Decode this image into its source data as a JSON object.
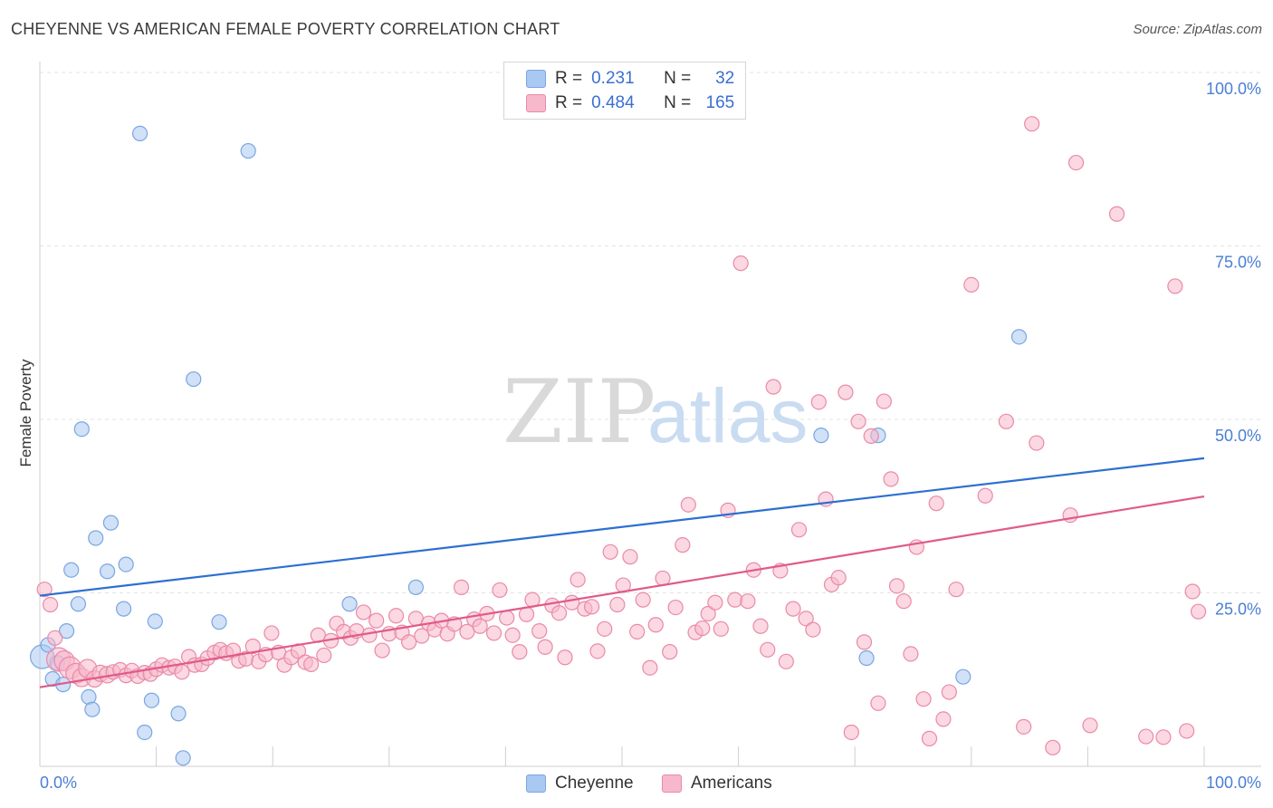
{
  "title": "CHEYENNE VS AMERICAN FEMALE POVERTY CORRELATION CHART",
  "source": "Source: ZipAtlas.com",
  "watermark": {
    "zip": "ZIP",
    "atlas": "atlas"
  },
  "legend": {
    "rows": [
      {
        "r_label": "R =",
        "r_value": "0.231",
        "n_label": "N =",
        "n_value": "32",
        "color": "#a9c8f2",
        "border": "#7aa6e0"
      },
      {
        "r_label": "R =",
        "r_value": "0.484",
        "n_label": "N =",
        "n_value": "165",
        "color": "#f7b8cb",
        "border": "#e98aa8"
      }
    ]
  },
  "bottom_legend": [
    {
      "label": "Cheyenne",
      "color": "#a9c8f2",
      "border": "#7aa6e0"
    },
    {
      "label": "Americans",
      "color": "#f7b8cb",
      "border": "#e98aa8"
    }
  ],
  "chart_data": {
    "type": "scatter",
    "title": "CHEYENNE VS AMERICAN FEMALE POVERTY CORRELATION CHART",
    "xlabel": "",
    "ylabel": "Female Poverty",
    "xlim": [
      0,
      100
    ],
    "ylim": [
      0,
      100
    ],
    "x_tick_labels": [
      "0.0%",
      "100.0%"
    ],
    "y_tick_labels": [
      {
        "value": 25,
        "label": "25.0%"
      },
      {
        "value": 50,
        "label": "50.0%"
      },
      {
        "value": 75,
        "label": "75.0%"
      },
      {
        "value": 100,
        "label": "100.0%"
      }
    ],
    "grid": true,
    "legend_position": "top-center",
    "series": [
      {
        "name": "Cheyenne",
        "color": "#a9c8f2",
        "stroke": "#7aa6e0",
        "trend": {
          "color": "#2d6fd0",
          "x": [
            0,
            100
          ],
          "y": [
            24.6,
            44.4
          ]
        },
        "points": [
          [
            0.2,
            15.8,
            26
          ],
          [
            0.7,
            17.5,
            16
          ],
          [
            1.1,
            12.6,
            16
          ],
          [
            1.5,
            14.9,
            16
          ],
          [
            2.0,
            11.8,
            16
          ],
          [
            2.3,
            19.5,
            16
          ],
          [
            2.7,
            28.3,
            16
          ],
          [
            3.3,
            23.4,
            16
          ],
          [
            3.6,
            48.6,
            16
          ],
          [
            4.2,
            10.0,
            16
          ],
          [
            4.5,
            8.2,
            16
          ],
          [
            4.8,
            32.9,
            16
          ],
          [
            5.8,
            28.1,
            16
          ],
          [
            6.1,
            35.1,
            16
          ],
          [
            7.2,
            22.7,
            16
          ],
          [
            7.4,
            29.1,
            16
          ],
          [
            8.6,
            91.2,
            16
          ],
          [
            9.0,
            4.9,
            16
          ],
          [
            9.6,
            9.5,
            16
          ],
          [
            9.9,
            20.9,
            16
          ],
          [
            11.9,
            7.6,
            16
          ],
          [
            12.3,
            1.2,
            16
          ],
          [
            13.2,
            55.8,
            16
          ],
          [
            15.4,
            20.8,
            16
          ],
          [
            17.9,
            88.7,
            16
          ],
          [
            26.6,
            23.4,
            16
          ],
          [
            32.3,
            25.8,
            16
          ],
          [
            67.1,
            47.7,
            16
          ],
          [
            71.0,
            15.6,
            16
          ],
          [
            72.0,
            47.7,
            16
          ],
          [
            79.3,
            12.9,
            16
          ],
          [
            84.1,
            61.9,
            16
          ]
        ]
      },
      {
        "name": "Americans",
        "color": "#f7b8cb",
        "stroke": "#e98aa8",
        "trend": {
          "color": "#e05a8a",
          "x": [
            0,
            100
          ],
          "y": [
            11.4,
            38.9
          ]
        },
        "points": [
          [
            0.4,
            25.5,
            16
          ],
          [
            0.9,
            23.3,
            16
          ],
          [
            1.3,
            18.5,
            16
          ],
          [
            1.6,
            15.4,
            26
          ],
          [
            2.1,
            15.2,
            22
          ],
          [
            2.6,
            14.2,
            24
          ],
          [
            3.1,
            13.4,
            22
          ],
          [
            3.6,
            12.8,
            20
          ],
          [
            4.1,
            14.1,
            20
          ],
          [
            4.7,
            12.6,
            18
          ],
          [
            5.2,
            13.4,
            18
          ],
          [
            5.8,
            13.2,
            18
          ],
          [
            6.3,
            13.6,
            16
          ],
          [
            6.9,
            13.9,
            16
          ],
          [
            7.4,
            13.1,
            16
          ],
          [
            7.9,
            13.8,
            16
          ],
          [
            8.4,
            13.0,
            16
          ],
          [
            9.0,
            13.5,
            16
          ],
          [
            9.5,
            13.3,
            16
          ],
          [
            10.0,
            14.0,
            16
          ],
          [
            10.5,
            14.6,
            16
          ],
          [
            11.1,
            14.2,
            16
          ],
          [
            11.6,
            14.4,
            16
          ],
          [
            12.2,
            13.6,
            16
          ],
          [
            12.8,
            15.8,
            16
          ],
          [
            13.3,
            14.6,
            16
          ],
          [
            13.9,
            14.7,
            16
          ],
          [
            14.4,
            15.6,
            16
          ],
          [
            15.0,
            16.4,
            16
          ],
          [
            15.5,
            16.8,
            16
          ],
          [
            16.0,
            16.3,
            16
          ],
          [
            16.6,
            16.7,
            16
          ],
          [
            17.1,
            15.2,
            16
          ],
          [
            17.7,
            15.5,
            16
          ],
          [
            18.3,
            17.3,
            16
          ],
          [
            18.8,
            15.1,
            16
          ],
          [
            19.4,
            16.1,
            16
          ],
          [
            19.9,
            19.2,
            16
          ],
          [
            20.5,
            16.4,
            16
          ],
          [
            21.0,
            14.6,
            16
          ],
          [
            21.6,
            15.7,
            16
          ],
          [
            22.2,
            16.6,
            16
          ],
          [
            22.8,
            15.0,
            16
          ],
          [
            23.3,
            14.7,
            16
          ],
          [
            23.9,
            18.9,
            16
          ],
          [
            24.4,
            16.0,
            16
          ],
          [
            25.0,
            18.1,
            16
          ],
          [
            25.5,
            20.6,
            16
          ],
          [
            26.1,
            19.4,
            16
          ],
          [
            26.7,
            18.5,
            16
          ],
          [
            27.2,
            19.5,
            16
          ],
          [
            27.8,
            22.2,
            16
          ],
          [
            28.3,
            18.9,
            16
          ],
          [
            28.9,
            21.0,
            16
          ],
          [
            29.4,
            16.7,
            16
          ],
          [
            30.0,
            19.1,
            16
          ],
          [
            30.6,
            21.7,
            16
          ],
          [
            31.1,
            19.3,
            16
          ],
          [
            31.7,
            17.9,
            16
          ],
          [
            32.3,
            21.3,
            16
          ],
          [
            32.8,
            18.8,
            16
          ],
          [
            33.4,
            20.6,
            16
          ],
          [
            33.9,
            19.7,
            16
          ],
          [
            34.5,
            21.0,
            16
          ],
          [
            35.0,
            19.1,
            16
          ],
          [
            35.6,
            20.5,
            16
          ],
          [
            36.2,
            25.8,
            16
          ],
          [
            36.7,
            19.4,
            16
          ],
          [
            37.3,
            21.2,
            16
          ],
          [
            37.8,
            20.2,
            16
          ],
          [
            38.4,
            22.0,
            16
          ],
          [
            39.0,
            19.2,
            16
          ],
          [
            39.5,
            25.4,
            16
          ],
          [
            40.1,
            21.4,
            16
          ],
          [
            40.6,
            18.9,
            16
          ],
          [
            41.2,
            16.5,
            16
          ],
          [
            41.8,
            21.9,
            16
          ],
          [
            42.3,
            24.0,
            16
          ],
          [
            42.9,
            19.5,
            16
          ],
          [
            43.4,
            17.2,
            16
          ],
          [
            44.0,
            23.2,
            16
          ],
          [
            44.6,
            22.1,
            16
          ],
          [
            45.1,
            15.7,
            16
          ],
          [
            45.7,
            23.6,
            16
          ],
          [
            46.2,
            26.9,
            16
          ],
          [
            46.8,
            22.7,
            16
          ],
          [
            47.4,
            23.0,
            16
          ],
          [
            47.9,
            16.6,
            16
          ],
          [
            48.5,
            19.8,
            16
          ],
          [
            49.0,
            30.9,
            16
          ],
          [
            49.6,
            23.3,
            16
          ],
          [
            50.1,
            26.1,
            16
          ],
          [
            50.7,
            30.2,
            16
          ],
          [
            51.3,
            19.4,
            16
          ],
          [
            51.8,
            24.0,
            16
          ],
          [
            52.4,
            14.2,
            16
          ],
          [
            52.9,
            20.4,
            16
          ],
          [
            53.5,
            27.1,
            16
          ],
          [
            54.1,
            16.5,
            16
          ],
          [
            54.6,
            22.9,
            16
          ],
          [
            55.2,
            31.9,
            16
          ],
          [
            55.7,
            37.7,
            16
          ],
          [
            56.3,
            19.3,
            16
          ],
          [
            56.9,
            19.9,
            16
          ],
          [
            57.4,
            22.0,
            16
          ],
          [
            58.0,
            23.6,
            16
          ],
          [
            58.5,
            19.8,
            16
          ],
          [
            59.1,
            36.9,
            16
          ],
          [
            59.7,
            24.0,
            16
          ],
          [
            60.2,
            72.5,
            16
          ],
          [
            60.8,
            23.8,
            16
          ],
          [
            61.3,
            28.3,
            16
          ],
          [
            61.9,
            20.2,
            16
          ],
          [
            62.5,
            16.8,
            16
          ],
          [
            63.0,
            54.7,
            16
          ],
          [
            63.6,
            28.2,
            16
          ],
          [
            64.1,
            15.1,
            16
          ],
          [
            64.7,
            22.7,
            16
          ],
          [
            65.2,
            34.1,
            16
          ],
          [
            65.8,
            21.3,
            16
          ],
          [
            66.4,
            19.7,
            16
          ],
          [
            66.9,
            52.5,
            16
          ],
          [
            67.5,
            38.5,
            16
          ],
          [
            68.0,
            26.2,
            16
          ],
          [
            68.6,
            27.2,
            16
          ],
          [
            69.2,
            53.9,
            16
          ],
          [
            69.7,
            4.9,
            16
          ],
          [
            70.3,
            49.7,
            16
          ],
          [
            70.8,
            17.9,
            16
          ],
          [
            71.4,
            47.6,
            16
          ],
          [
            72.0,
            9.1,
            16
          ],
          [
            72.5,
            52.6,
            16
          ],
          [
            73.1,
            41.4,
            16
          ],
          [
            73.6,
            26.0,
            16
          ],
          [
            74.2,
            23.8,
            16
          ],
          [
            74.8,
            16.2,
            16
          ],
          [
            75.3,
            31.6,
            16
          ],
          [
            75.9,
            9.7,
            16
          ],
          [
            76.4,
            4.0,
            16
          ],
          [
            77.0,
            37.9,
            16
          ],
          [
            77.6,
            6.8,
            16
          ],
          [
            78.1,
            10.7,
            16
          ],
          [
            78.7,
            25.5,
            16
          ],
          [
            80.0,
            69.4,
            16
          ],
          [
            81.2,
            39.0,
            16
          ],
          [
            83.0,
            49.7,
            16
          ],
          [
            84.5,
            5.7,
            16
          ],
          [
            85.2,
            92.6,
            16
          ],
          [
            85.6,
            46.6,
            16
          ],
          [
            87.0,
            2.7,
            16
          ],
          [
            88.5,
            36.2,
            16
          ],
          [
            89.0,
            87.0,
            16
          ],
          [
            90.2,
            5.9,
            16
          ],
          [
            92.5,
            79.6,
            16
          ],
          [
            95.0,
            4.3,
            16
          ],
          [
            96.5,
            4.2,
            16
          ],
          [
            97.5,
            69.2,
            16
          ],
          [
            98.5,
            5.1,
            16
          ],
          [
            99.0,
            25.2,
            16
          ],
          [
            99.5,
            22.3,
            16
          ]
        ]
      }
    ]
  }
}
